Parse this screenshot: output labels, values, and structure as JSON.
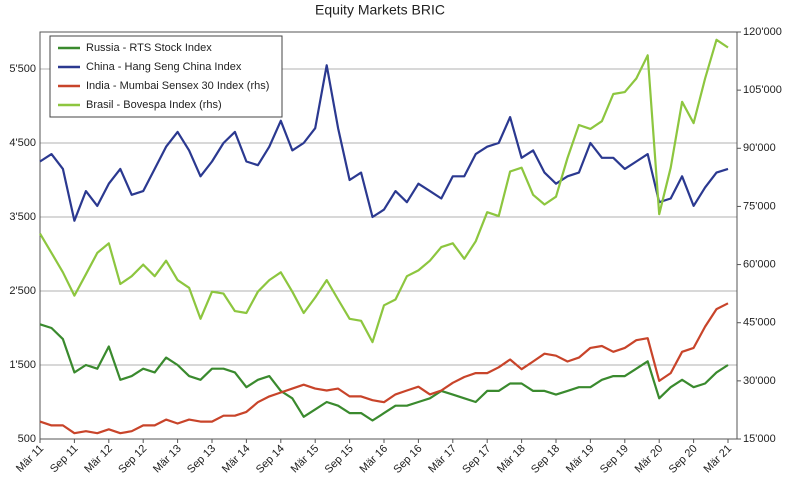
{
  "chart_data": {
    "type": "line",
    "title": "Equity Markets BRIC",
    "categories": [
      "Mär 11",
      null,
      null,
      "Sep 11",
      null,
      null,
      "Mär 12",
      null,
      null,
      "Sep 12",
      null,
      null,
      "Mär 13",
      null,
      null,
      "Sep 13",
      null,
      null,
      "Mär 14",
      null,
      null,
      "Sep 14",
      null,
      null,
      "Mär 15",
      null,
      null,
      "Sep 15",
      null,
      null,
      "Mär 16",
      null,
      null,
      "Sep 16",
      null,
      null,
      "Mär 17",
      null,
      null,
      "Sep 17",
      null,
      null,
      "Mär 18",
      null,
      null,
      "Sep 18",
      null,
      null,
      "Mär 19",
      null,
      null,
      "Sep 19",
      null,
      null,
      "Mär 20",
      null,
      null,
      "Sep 20",
      null,
      null,
      "Mär 21"
    ],
    "series": [
      {
        "name": "Russia - RTS Stock Index",
        "color": "#3a8a2e",
        "values": [
          2050,
          2000,
          1850,
          1400,
          1500,
          1450,
          1750,
          1300,
          1350,
          1450,
          1400,
          1600,
          1500,
          1350,
          1300,
          1450,
          1450,
          1400,
          1200,
          1300,
          1350,
          1150,
          1050,
          800,
          900,
          1000,
          950,
          850,
          850,
          750,
          850,
          950,
          950,
          1000,
          1050,
          1150,
          1100,
          1050,
          1000,
          1150,
          1150,
          1250,
          1250,
          1150,
          1150,
          1100,
          1150,
          1200,
          1200,
          1300,
          1350,
          1350,
          1450,
          1550,
          1050,
          1200,
          1300,
          1200,
          1250,
          1400,
          1500
        ]
      },
      {
        "name": "China - Hang Seng China Index",
        "color": "#2b3990",
        "values": [
          4250,
          4350,
          4150,
          3450,
          3850,
          3650,
          3950,
          4150,
          3800,
          3850,
          4150,
          4450,
          4650,
          4400,
          4050,
          4250,
          4500,
          4650,
          4250,
          4200,
          4450,
          4800,
          4400,
          4500,
          4700,
          5550,
          4700,
          4000,
          4100,
          3500,
          3600,
          3850,
          3700,
          3950,
          3850,
          3750,
          4050,
          4050,
          4350,
          4450,
          4500,
          4850,
          4300,
          4400,
          4100,
          3950,
          4050,
          4100,
          4500,
          4300,
          4300,
          4150,
          4250,
          4350,
          3700,
          3750,
          4050,
          3650,
          3900,
          4100,
          4150
        ]
      },
      {
        "name": "India - Mumbai Sensex 30 Index (rhs)",
        "color": "#c8442a",
        "axis": "y2",
        "values": [
          19500,
          18500,
          18500,
          16500,
          17000,
          16500,
          17500,
          16500,
          17000,
          18500,
          18500,
          20000,
          19000,
          20000,
          19500,
          19500,
          21000,
          21000,
          22000,
          24500,
          26000,
          27000,
          28000,
          29000,
          28000,
          27500,
          28000,
          26000,
          26000,
          25000,
          24500,
          26500,
          27500,
          28500,
          26500,
          27500,
          29500,
          31000,
          32000,
          32000,
          33500,
          35500,
          33000,
          35000,
          37000,
          36500,
          35000,
          36000,
          38500,
          39000,
          37500,
          38500,
          40500,
          41000,
          30000,
          32000,
          37500,
          38500,
          44000,
          48500,
          50000
        ]
      },
      {
        "name": "Brasil - Bovespa Index (rhs)",
        "color": "#8dc63f",
        "axis": "y2",
        "values": [
          68000,
          63000,
          58000,
          52000,
          57500,
          63000,
          65500,
          55000,
          57000,
          60000,
          57000,
          61000,
          56000,
          54000,
          46000,
          53000,
          52500,
          48000,
          47500,
          53000,
          56000,
          58000,
          53000,
          47500,
          51500,
          56000,
          51000,
          46000,
          45500,
          40000,
          49500,
          51000,
          57000,
          58500,
          61000,
          64500,
          65500,
          61500,
          66000,
          73500,
          72500,
          84000,
          85000,
          78000,
          75500,
          77500,
          87500,
          96000,
          95000,
          97000,
          104000,
          104500,
          108000,
          114000,
          73000,
          85000,
          102000,
          96500,
          108000,
          118000,
          116000
        ]
      }
    ],
    "ylim": [
      500,
      6000
    ],
    "yticks": [
      500,
      {
        "value": 1500,
        "label": "1'500"
      },
      {
        "value": 2500,
        "label": "2'500"
      },
      {
        "value": 3500,
        "label": "3'500"
      },
      {
        "value": 4500,
        "label": "4'500"
      },
      {
        "value": 5500,
        "label": "5'500"
      }
    ],
    "y2lim": [
      15000,
      120000
    ],
    "y2ticks": [
      {
        "value": 15000,
        "label": "15'000"
      },
      {
        "value": 30000,
        "label": "30'000"
      },
      {
        "value": 45000,
        "label": "45'000"
      },
      {
        "value": 60000,
        "label": "60'000"
      },
      {
        "value": 75000,
        "label": "75'000"
      },
      {
        "value": 90000,
        "label": "90'000"
      },
      {
        "value": 105000,
        "label": "105'000"
      },
      {
        "value": 120000,
        "label": "120'000"
      }
    ],
    "grid": true,
    "legend": "upper left"
  }
}
